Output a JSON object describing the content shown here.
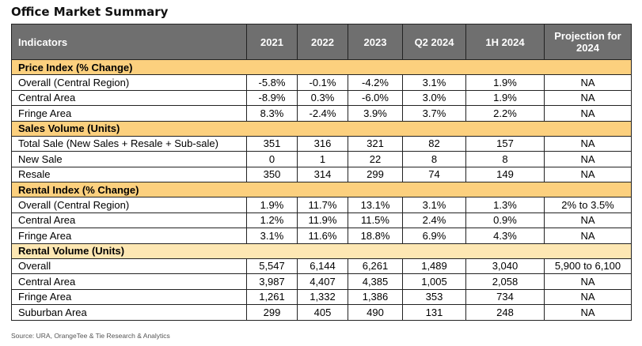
{
  "title": "Office Market Summary",
  "headers": [
    "Indicators",
    "2021",
    "2022",
    "2023",
    "Q2 2024",
    "1H 2024",
    "Projection for 2024"
  ],
  "sections": [
    {
      "name": "Price Index (% Change)",
      "rows": [
        [
          "Overall (Central Region)",
          "-5.8%",
          "-0.1%",
          "-4.2%",
          "3.1%",
          "1.9%",
          "NA"
        ],
        [
          "Central Area",
          "-8.9%",
          "0.3%",
          "-6.0%",
          "3.0%",
          "1.9%",
          "NA"
        ],
        [
          "Fringe Area",
          "8.3%",
          "-2.4%",
          "3.9%",
          "3.7%",
          "2.2%",
          "NA"
        ]
      ]
    },
    {
      "name": "Sales Volume (Units)",
      "rows": [
        [
          "Total Sale (New Sales + Resale + Sub-sale)",
          "351",
          "316",
          "321",
          "82",
          "157",
          "NA"
        ],
        [
          "New Sale",
          "0",
          "1",
          "22",
          "8",
          "8",
          "NA"
        ],
        [
          "Resale",
          "350",
          "314",
          "299",
          "74",
          "149",
          "NA"
        ]
      ]
    },
    {
      "name": "Rental Index (% Change)",
      "rows": [
        [
          "Overall (Central Region)",
          "1.9%",
          "11.7%",
          "13.1%",
          "3.1%",
          "1.3%",
          "2% to 3.5%"
        ],
        [
          "Central Area",
          "1.2%",
          "11.9%",
          "11.5%",
          "2.4%",
          "0.9%",
          "NA"
        ],
        [
          "Fringe Area",
          "3.1%",
          "11.6%",
          "18.8%",
          "6.9%",
          "4.3%",
          "NA"
        ]
      ]
    },
    {
      "name": "Rental Volume (Units)",
      "rows": [
        [
          "Overall",
          "5,547",
          "6,144",
          "6,261",
          "1,489",
          "3,040",
          "5,900 to 6,100"
        ],
        [
          "Central Area",
          "3,987",
          "4,407",
          "4,385",
          "1,005",
          "2,058",
          "NA"
        ],
        [
          "Fringe Area",
          "1,261",
          "1,332",
          "1,386",
          "353",
          "734",
          "NA"
        ],
        [
          "Suburban Area",
          "299",
          "405",
          "490",
          "131",
          "248",
          "NA"
        ]
      ]
    }
  ],
  "source": "Source: URA, OrangeTee & Tie Research & Analytics",
  "colors": {
    "header_bg": "#6f6f6f",
    "section_bg": "#fcd07e",
    "section_bg_last": "#fde7b3"
  }
}
